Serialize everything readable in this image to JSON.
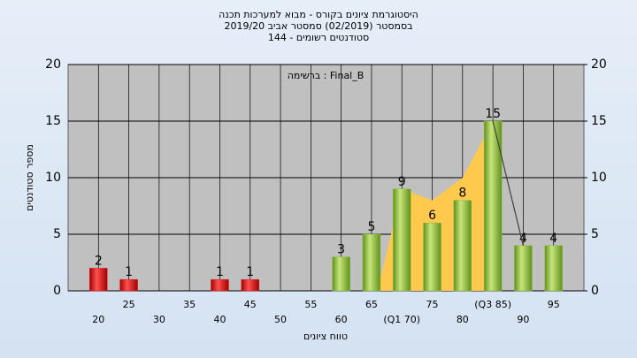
{
  "chart_data": {
    "type": "bar",
    "title": "היסטוגרמת ציונים בקורס - מבוא למערכות תכנה",
    "subtitle": "בסמסטר (02/2019) סמסטר אביב 2019/20",
    "subtitle2": "סטודנטים רשומים - 144",
    "annotation": "ברשימה : Final_B",
    "x_label": "טווח ציונים",
    "y_label": "מספר סטודנטים",
    "categories": [
      "20",
      "25",
      "30",
      "35",
      "40",
      "45",
      "50",
      "55",
      "60",
      "65",
      "(Q1 70)",
      "75",
      "80",
      "(Q3 85)",
      "90",
      "95"
    ],
    "values": [
      2,
      1,
      0,
      0,
      1,
      1,
      0,
      0,
      3,
      5,
      9,
      6,
      8,
      15,
      4,
      4
    ],
    "colors": [
      "#e02020",
      "#e02020",
      "#e02020",
      "#e02020",
      "#e02020",
      "#e02020",
      "#e02020",
      "#e02020",
      "#8cbf3c",
      "#8cbf3c",
      "#8cbf3c",
      "#8cbf3c",
      "#8cbf3c",
      "#8cbf3c",
      "#8cbf3c",
      "#8cbf3c"
    ],
    "area": {
      "color": "#ffc94d",
      "x": [
        66,
        70,
        75,
        80,
        85
      ],
      "values": [
        0,
        9,
        8,
        10,
        15
      ]
    },
    "line": {
      "color": "#404040",
      "x": [
        85,
        90
      ],
      "values": [
        15,
        4
      ]
    },
    "ylim": [
      0,
      20
    ],
    "yticks": [
      0,
      5,
      10,
      15,
      20
    ],
    "y2lim": [
      0,
      20
    ],
    "y2ticks": [
      0,
      5,
      10,
      15,
      20
    ],
    "grid": true
  }
}
